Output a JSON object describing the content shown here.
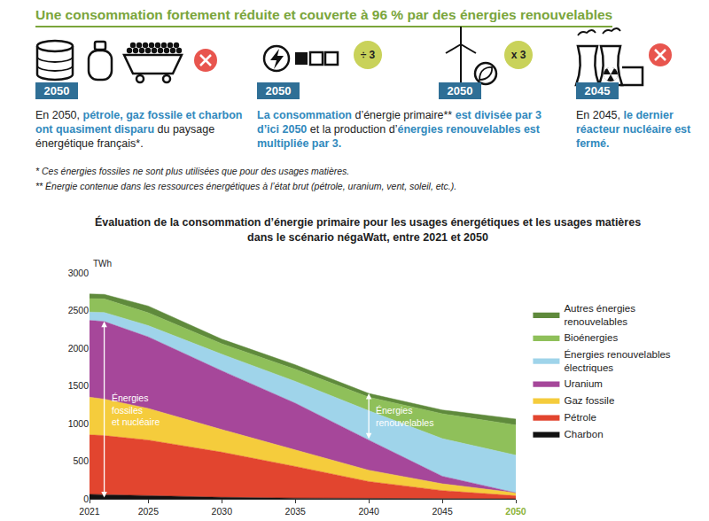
{
  "header": {
    "title": "Une consommation fortement réduite et couverte à 96 % par des énergies renouvelables",
    "panels": [
      {
        "year": "2050",
        "mark": "cross"
      },
      {
        "year": "2050",
        "factor": "÷ 3"
      },
      {
        "year": "2050",
        "factor": "x 3"
      },
      {
        "year": "2045",
        "mark": "cross"
      }
    ],
    "texts": [
      [
        {
          "text": "En 2050, ",
          "highlight": false
        },
        {
          "text": "pétrole, gaz fossile et charbon ont quasiment disparu",
          "highlight": true
        },
        {
          "text": " du paysage énergétique français*.",
          "highlight": false
        }
      ],
      [
        {
          "text": "La consommation",
          "highlight": true
        },
        {
          "text": " d’énergie primaire** ",
          "highlight": false
        },
        {
          "text": "est divisée par 3 d’ici 2050",
          "highlight": true
        },
        {
          "text": " et la production d’",
          "highlight": false
        },
        {
          "text": "énergies renouvelables est multipliée par 3.",
          "highlight": true
        }
      ],
      [
        {
          "text": "En 2045, ",
          "highlight": false
        },
        {
          "text": "le dernier réacteur nucléaire est fermé.",
          "highlight": true
        }
      ]
    ],
    "footnotes": [
      "* Ces énergies fossiles ne sont plus utilisées que pour des usages matières.",
      "** Énergie contenue dans les ressources énergétiques à l’état brut (pétrole, uranium, vent, soleil, etc.)."
    ]
  },
  "chart_data": {
    "type": "area",
    "title": "Évaluation de la consommation d’énergie primaire pour les usages énergétiques et les usages matières\ndans le scénario négaWatt, entre 2021 et 2050",
    "y_label": "TWh",
    "stacked": true,
    "grid": false,
    "legend": "right",
    "x": [
      2021,
      2022,
      2025,
      2030,
      2035,
      2040,
      2045,
      2050
    ],
    "xlim": [
      2021,
      2050
    ],
    "xticks": [
      2021,
      2025,
      2030,
      2035,
      2040,
      2045,
      2050
    ],
    "ylim": [
      0,
      3000
    ],
    "yticks": [
      0,
      500,
      1000,
      1500,
      2000,
      2500,
      3000
    ],
    "series": [
      {
        "name": "Charbon",
        "color": "#111111",
        "values": [
          60,
          55,
          40,
          20,
          10,
          5,
          0,
          0
        ]
      },
      {
        "name": "Pétrole",
        "color": "#e2452f",
        "values": [
          790,
          785,
          740,
          600,
          420,
          225,
          110,
          40
        ]
      },
      {
        "name": "Gaz fossile",
        "color": "#f5cc3c",
        "values": [
          500,
          485,
          420,
          300,
          220,
          150,
          90,
          40
        ]
      },
      {
        "name": "Uranium",
        "color": "#a6479a",
        "values": [
          1020,
          1030,
          950,
          780,
          620,
          400,
          100,
          0
        ]
      },
      {
        "name": "Énergies renouvelables électriques",
        "color": "#9fd4ea",
        "values": [
          110,
          120,
          150,
          220,
          290,
          390,
          500,
          500
        ]
      },
      {
        "name": "Bioénergies",
        "color": "#8fc05a",
        "values": [
          180,
          180,
          170,
          140,
          160,
          180,
          330,
          400
        ]
      },
      {
        "name": "Autres énergies renouvelables",
        "color": "#5f8a3c",
        "values": [
          60,
          60,
          90,
          60,
          60,
          50,
          50,
          80
        ]
      }
    ],
    "annotations": [
      {
        "text": "Énergies\nfossiles\net nucléaire",
        "x": 2022,
        "series": [
          "Charbon",
          "Pétrole",
          "Gaz fossile",
          "Uranium"
        ]
      },
      {
        "text": "Énergies\nrenouvelables",
        "x": 2040,
        "series": [
          "Énergies renouvelables électriques",
          "Bioénergies",
          "Autres énergies renouvelables"
        ]
      }
    ]
  }
}
